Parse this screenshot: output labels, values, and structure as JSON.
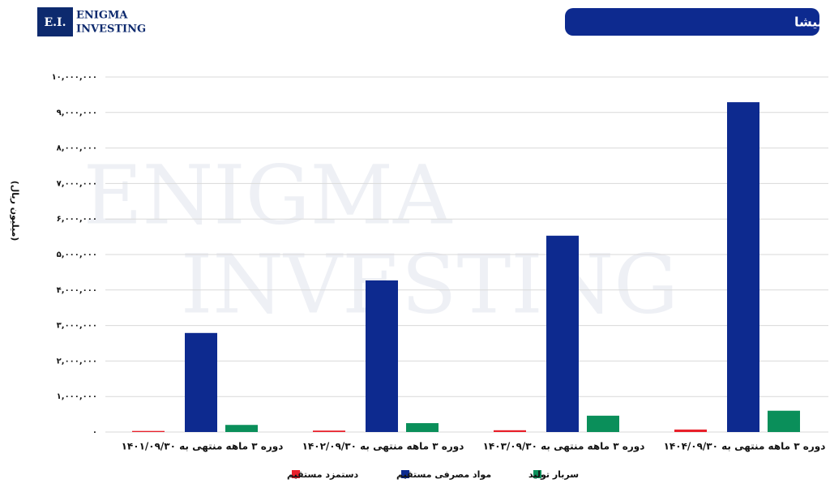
{
  "header": {
    "logo_mark": "E.I.",
    "logo_line1": "ENIGMA",
    "logo_line2": "INVESTING"
  },
  "chart_data": {
    "type": "bar",
    "title": "بهای تمام شده قنیشا",
    "y_label": "(میلیون ریال)",
    "watermark": [
      "ENIGMA",
      "INVESTING"
    ],
    "categories": [
      "دوره ۳ ماهه منتهی به ۱۴۰۱/۰۹/۳۰",
      "دوره ۳ ماهه منتهی به ۱۴۰۲/۰۹/۳۰",
      "دوره ۳ ماهه منتهی به ۱۴۰۳/۰۹/۳۰",
      "دوره ۳ ماهه منتهی به ۱۴۰۴/۰۹/۳۰"
    ],
    "series": [
      {
        "name": "دستمزد مستقیم",
        "color": "#e8202a",
        "values": [
          30000,
          40000,
          50000,
          70000
        ]
      },
      {
        "name": "مواد مصرفی مستقیم",
        "color": "#0d2a8f",
        "values": [
          2790000,
          4270000,
          5530000,
          9290000
        ]
      },
      {
        "name": "سربار تولید",
        "color": "#0a8f5a",
        "values": [
          200000,
          250000,
          460000,
          600000
        ]
      }
    ],
    "ylim": [
      0,
      10000000
    ],
    "yticks": [
      {
        "value": 0,
        "label": "۰"
      },
      {
        "value": 1000000,
        "label": "۱,۰۰۰,۰۰۰"
      },
      {
        "value": 2000000,
        "label": "۲,۰۰۰,۰۰۰"
      },
      {
        "value": 3000000,
        "label": "۳,۰۰۰,۰۰۰"
      },
      {
        "value": 4000000,
        "label": "۴,۰۰۰,۰۰۰"
      },
      {
        "value": 5000000,
        "label": "۵,۰۰۰,۰۰۰"
      },
      {
        "value": 6000000,
        "label": "۶,۰۰۰,۰۰۰"
      },
      {
        "value": 7000000,
        "label": "۷,۰۰۰,۰۰۰"
      },
      {
        "value": 8000000,
        "label": "۸,۰۰۰,۰۰۰"
      },
      {
        "value": 9000000,
        "label": "۹,۰۰۰,۰۰۰"
      },
      {
        "value": 10000000,
        "label": "۱۰,۰۰۰,۰۰۰"
      }
    ],
    "grid": true
  }
}
